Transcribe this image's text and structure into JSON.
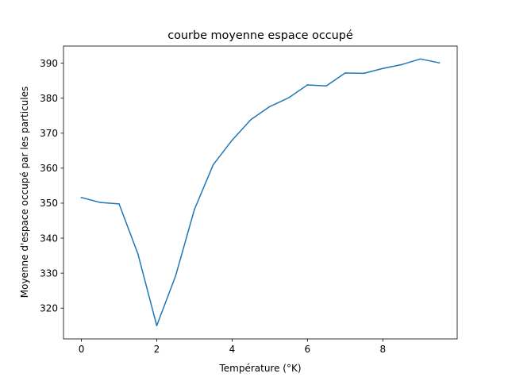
{
  "chart_data": {
    "type": "line",
    "title": "courbe moyenne espace occupé",
    "xlabel": "Température (°K)",
    "ylabel": "Moyenne d'espace occupé par les particules",
    "xlim": [
      -0.475,
      9.975
    ],
    "ylim": [
      311.2,
      394.9
    ],
    "xticks": [
      0,
      2,
      4,
      6,
      8
    ],
    "yticks": [
      320,
      330,
      340,
      350,
      360,
      370,
      380,
      390
    ],
    "grid": false,
    "line_color": "#1f77b4",
    "series": [
      {
        "x": [
          0,
          0.5,
          1,
          1.5,
          2,
          2.5,
          3,
          3.5,
          4,
          4.5,
          5,
          5.5,
          6,
          6.5,
          7,
          7.5,
          8,
          8.5,
          9,
          9.5
        ],
        "values": [
          351.6,
          350.2,
          349.8,
          335.5,
          315.0,
          329.2,
          348.2,
          361.0,
          368.0,
          373.9,
          377.6,
          380.1,
          383.8,
          383.5,
          387.2,
          387.1,
          388.5,
          389.6,
          391.2,
          390.1
        ]
      }
    ]
  }
}
